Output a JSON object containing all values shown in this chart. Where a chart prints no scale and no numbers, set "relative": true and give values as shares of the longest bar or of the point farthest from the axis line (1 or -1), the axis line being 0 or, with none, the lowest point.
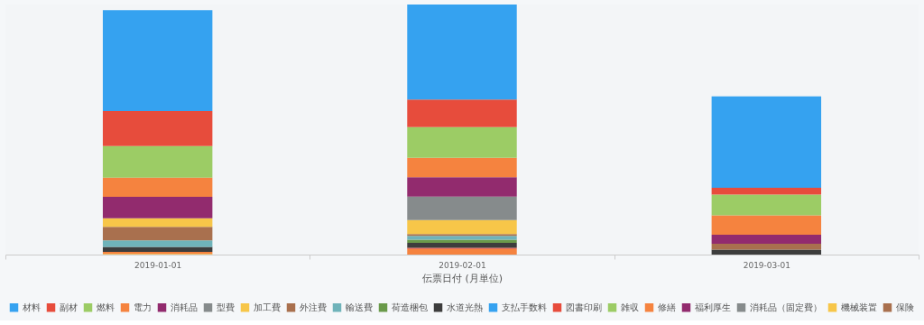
{
  "chart_data": {
    "type": "bar",
    "stacked": true,
    "relative": true,
    "xlabel": "伝票日付 (月単位)",
    "categories": [
      "2019-01-01",
      "2019-02-01",
      "2019-03-01"
    ],
    "legend": "bottom",
    "grid": false,
    "series": [
      {
        "name": "保険",
        "color": "#a9704e",
        "values": [
          null,
          null,
          null
        ]
      },
      {
        "name": "機械装置",
        "color": "#f7c649",
        "values": [
          0.003,
          null,
          null
        ]
      },
      {
        "name": "消耗品（固定費）",
        "color": "#868b8c",
        "values": [
          null,
          null,
          null
        ]
      },
      {
        "name": "福利厚生",
        "color": "#922b6e",
        "values": [
          null,
          null,
          null
        ]
      },
      {
        "name": "修繕",
        "color": "#f5833f",
        "values": [
          0.008,
          0.023,
          null
        ]
      },
      {
        "name": "雑収",
        "color": "#9ccc65",
        "values": [
          null,
          null,
          null
        ]
      },
      {
        "name": "図書印刷",
        "color": "#e74c3c",
        "values": [
          null,
          0.004,
          null
        ]
      },
      {
        "name": "支払手数料",
        "color": "#35a2f0",
        "values": [
          null,
          null,
          null
        ]
      },
      {
        "name": "水道光熱",
        "color": "#3d3d3d",
        "values": [
          0.02,
          0.02,
          0.02
        ]
      },
      {
        "name": "荷造梱包",
        "color": "#6a9a4a",
        "values": [
          null,
          0.013,
          null
        ]
      },
      {
        "name": "輸送費",
        "color": "#6fb3ba",
        "values": [
          0.026,
          0.015,
          null
        ]
      },
      {
        "name": "外注費",
        "color": "#a9704e",
        "values": [
          0.054,
          0.007,
          0.023
        ]
      },
      {
        "name": "加工費",
        "color": "#f7c649",
        "values": [
          0.034,
          0.056,
          null
        ]
      },
      {
        "name": "型費",
        "color": "#868b8c",
        "values": [
          null,
          0.094,
          null
        ]
      },
      {
        "name": "消耗品",
        "color": "#922b6e",
        "values": [
          0.086,
          0.078,
          0.036
        ]
      },
      {
        "name": "電力",
        "color": "#f5833f",
        "values": [
          0.077,
          0.077,
          0.078
        ]
      },
      {
        "name": "燃料",
        "color": "#9ccc65",
        "values": [
          0.126,
          0.123,
          0.083
        ]
      },
      {
        "name": "副材",
        "color": "#e74c3c",
        "values": [
          0.14,
          0.11,
          0.027
        ]
      },
      {
        "name": "材料",
        "color": "#35a2f0",
        "values": [
          0.403,
          0.38,
          0.366
        ]
      }
    ]
  }
}
